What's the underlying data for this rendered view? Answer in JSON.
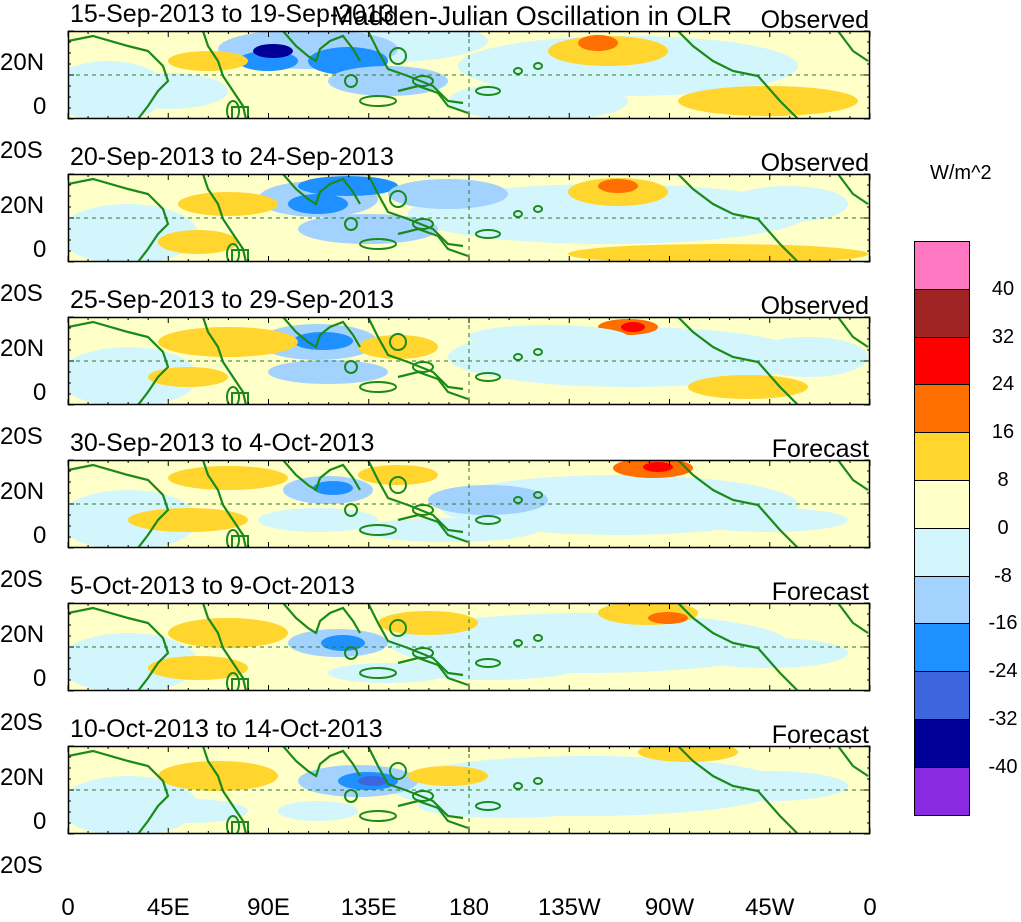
{
  "title": "Madden-Julian Oscillation in OLR",
  "units": "W/m^2",
  "panels": [
    {
      "date_range": "15-Sep-2013 to 19-Sep-2013",
      "kind": "Observed"
    },
    {
      "date_range": "20-Sep-2013 to 24-Sep-2013",
      "kind": "Observed"
    },
    {
      "date_range": "25-Sep-2013 to 29-Sep-2013",
      "kind": "Observed"
    },
    {
      "date_range": "30-Sep-2013 to 4-Oct-2013",
      "kind": "Forecast"
    },
    {
      "date_range": "5-Oct-2013 to 9-Oct-2013",
      "kind": "Forecast"
    },
    {
      "date_range": "10-Oct-2013 to 14-Oct-2013",
      "kind": "Forecast"
    }
  ],
  "lat_labels": [
    "20N",
    "0",
    "20S"
  ],
  "lon_labels": [
    "0",
    "45E",
    "90E",
    "135E",
    "180",
    "135W",
    "90W",
    "45W",
    "0"
  ],
  "colorbar": {
    "levels": [
      "40",
      "32",
      "24",
      "16",
      "8",
      "0",
      "-8",
      "-16",
      "-24",
      "-32",
      "-40"
    ],
    "colors": [
      "#ff77c0",
      "#a12424",
      "#ff0000",
      "#ff6e00",
      "#ffd52e",
      "#ffffc8",
      "#d2f6fc",
      "#a3d2ff",
      "#1e90ff",
      "#3d66de",
      "#000098",
      "#8a2be2"
    ]
  },
  "map_colors": {
    "coast": "#1a8a1a",
    "background": "#ffffc8",
    "equator_line": "#2a7a2a"
  }
}
